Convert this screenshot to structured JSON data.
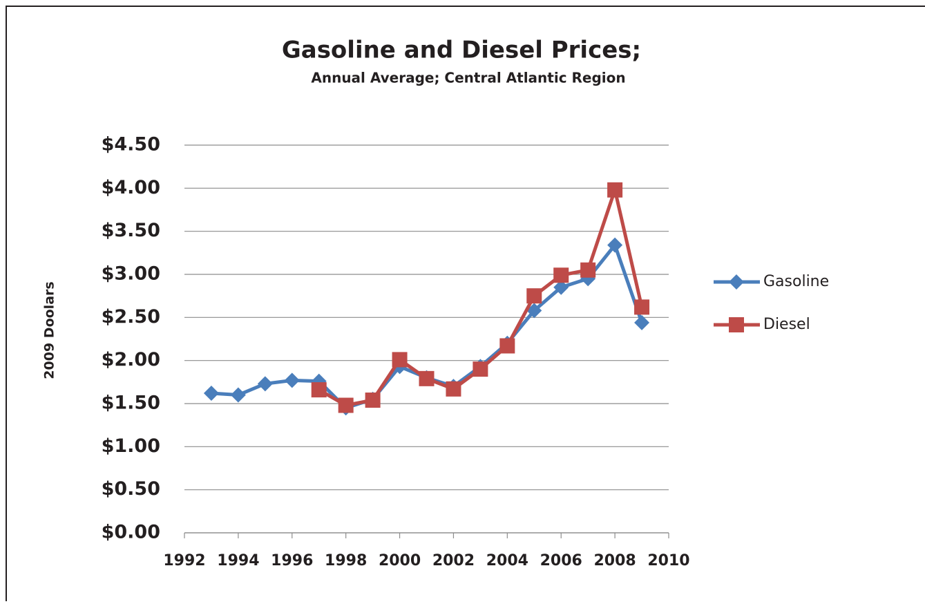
{
  "chart_data": {
    "type": "line",
    "title": "Gasoline and Diesel Prices;",
    "subtitle": "Annual Average; Central Atlantic Region",
    "y_label": "2009 Doolars",
    "x": [
      1993,
      1994,
      1995,
      1996,
      1997,
      1998,
      1999,
      2000,
      2001,
      2002,
      2003,
      2004,
      2005,
      2006,
      2007,
      2008,
      2009
    ],
    "series": [
      {
        "name": "Gasoline",
        "color": "#4a7ebb",
        "marker": "diamond",
        "values": [
          1.62,
          1.6,
          1.73,
          1.77,
          1.76,
          1.45,
          1.55,
          1.93,
          1.8,
          1.7,
          1.93,
          2.2,
          2.58,
          2.85,
          2.95,
          3.34,
          2.44
        ]
      },
      {
        "name": "Diesel",
        "color": "#be4b48",
        "marker": "square",
        "values": [
          null,
          null,
          null,
          null,
          1.66,
          1.48,
          1.54,
          2.01,
          1.79,
          1.67,
          1.9,
          2.17,
          2.75,
          2.99,
          3.05,
          3.98,
          2.62
        ]
      }
    ],
    "xlim": [
      1992,
      2010
    ],
    "xticks": [
      1992,
      1994,
      1996,
      1998,
      2000,
      2002,
      2004,
      2006,
      2008,
      2010
    ],
    "ylim": [
      0,
      4.5
    ],
    "yticks": [
      {
        "value": 0,
        "label": "$0.00"
      },
      {
        "value": 0.5,
        "label": "$0.50"
      },
      {
        "value": 1,
        "label": "$1.00"
      },
      {
        "value": 1.5,
        "label": "$1.50"
      },
      {
        "value": 2,
        "label": "$2.00"
      },
      {
        "value": 2.5,
        "label": "$2.50"
      },
      {
        "value": 3,
        "label": "$3.00"
      },
      {
        "value": 3.5,
        "label": "$3.50"
      },
      {
        "value": 4,
        "label": "$4.00"
      },
      {
        "value": 4.5,
        "label": "$4.50"
      }
    ],
    "grid": true,
    "legend": "right"
  }
}
